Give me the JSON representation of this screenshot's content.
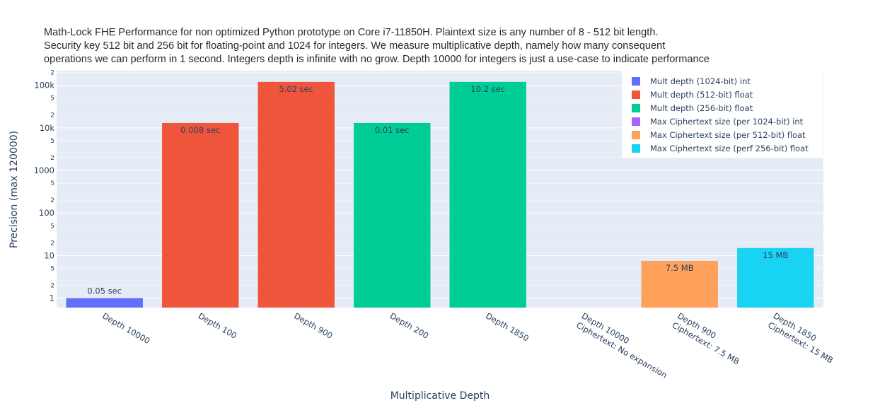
{
  "chart_data": {
    "type": "bar",
    "title_lines": [
      "Math-Lock FHE Performance for non optimized Python prototype on Core i7-11850H. Plaintext size is any number of 8 - 512 bit length.",
      "Security key 512 bit and 256 bit for floating-point and 1024 for integers. We measure multiplicative depth, namely how many consequent",
      "operations we can perform in 1 second. Integers depth is infinite with no grow. Depth 10000 for integers is just a use-case to indicate performance"
    ],
    "xlabel": "Multiplicative Depth",
    "ylabel": "Precision (max 120000)",
    "yscale": "log",
    "ylim": [
      0.6,
      220000
    ],
    "y_major_ticks": [
      {
        "value": 1,
        "label": "1"
      },
      {
        "value": 10,
        "label": "10"
      },
      {
        "value": 100,
        "label": "100"
      },
      {
        "value": 1000,
        "label": "1000"
      },
      {
        "value": 10000,
        "label": "10k"
      },
      {
        "value": 100000,
        "label": "100k"
      }
    ],
    "y_minor_ticks": [
      {
        "value": 2,
        "label": "2"
      },
      {
        "value": 5,
        "label": "5"
      },
      {
        "value": 20,
        "label": "2"
      },
      {
        "value": 50,
        "label": "5"
      },
      {
        "value": 200,
        "label": "2"
      },
      {
        "value": 500,
        "label": "5"
      },
      {
        "value": 2000,
        "label": "2"
      },
      {
        "value": 5000,
        "label": "5"
      },
      {
        "value": 20000,
        "label": "2"
      },
      {
        "value": 50000,
        "label": "5"
      },
      {
        "value": 200000,
        "label": "2"
      }
    ],
    "categories": [
      "Depth 10000",
      "Depth 100",
      "Depth 900",
      "Depth 200",
      "Depth 1850",
      "Depth 10000\nCiphertext: No expansion",
      "Depth 900\nCiphertext: 7.5 MB",
      "Depth 1850\nCiphertext: 15 MB"
    ],
    "bars": [
      {
        "category_index": 0,
        "value": 1,
        "label": "0.05 sec",
        "series": 0,
        "label_position": "outside"
      },
      {
        "category_index": 1,
        "value": 13000,
        "label": "0.008 sec",
        "series": 1,
        "label_position": "inside"
      },
      {
        "category_index": 2,
        "value": 120000,
        "label": "5.02 sec",
        "series": 1,
        "label_position": "inside"
      },
      {
        "category_index": 3,
        "value": 13000,
        "label": "0.01 sec",
        "series": 2,
        "label_position": "inside"
      },
      {
        "category_index": 4,
        "value": 120000,
        "label": "10.2 sec",
        "series": 2,
        "label_position": "inside"
      },
      {
        "category_index": 6,
        "value": 7.5,
        "label": "7.5 MB",
        "series": 4,
        "label_position": "inside"
      },
      {
        "category_index": 7,
        "value": 15,
        "label": "15 MB",
        "series": 5,
        "label_position": "inside"
      }
    ],
    "series": [
      {
        "name": "Mult depth (1024-bit) int",
        "color": "#636efa"
      },
      {
        "name": "Mult depth (512-bit) float",
        "color": "#ef553b"
      },
      {
        "name": "Mult depth (256-bit) float",
        "color": "#00cc96"
      },
      {
        "name": "Max Ciphertext size (per 1024-bit) int",
        "color": "#ab63fa"
      },
      {
        "name": "Max Ciphertext size (per 512-bit) float",
        "color": "#ffa15a"
      },
      {
        "name": "Max Ciphertext size (perf 256-bit) float",
        "color": "#19d3f3"
      }
    ],
    "legend_position": "top-right",
    "grid": true
  }
}
